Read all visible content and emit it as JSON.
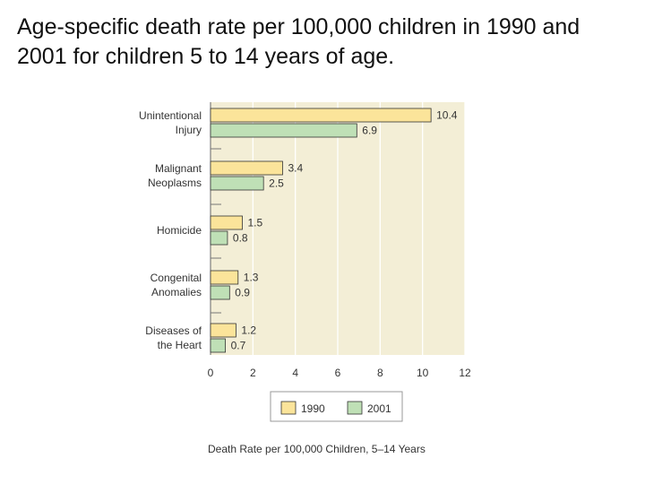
{
  "slide": {
    "title": "Age-specific death rate per 100,000 children in 1990 and 2001 for children 5 to 14 years of age."
  },
  "chart_data": {
    "type": "bar",
    "orientation": "horizontal",
    "categories": [
      [
        "Unintentional",
        "Injury"
      ],
      [
        "Malignant",
        "Neoplasms"
      ],
      [
        "Homicide"
      ],
      [
        "Congenital",
        "Anomalies"
      ],
      [
        "Diseases of",
        "the Heart"
      ]
    ],
    "series": [
      {
        "name": "1990",
        "values": [
          10.4,
          3.4,
          1.5,
          1.3,
          1.2
        ],
        "labels": [
          "10.4",
          "3.4",
          "1.5",
          "1.3",
          "1.2"
        ],
        "color": "#fbe49a"
      },
      {
        "name": "2001",
        "values": [
          6.9,
          2.5,
          0.8,
          0.9,
          0.7
        ],
        "labels": [
          "6.9",
          "2.5",
          "0.8",
          "0.9",
          "0.7"
        ],
        "color": "#bfe0b6"
      }
    ],
    "xlim": [
      0,
      12
    ],
    "xticks": [
      0,
      2,
      4,
      6,
      8,
      10,
      12
    ],
    "xlabel": "Death Rate per 100,000 Children, 5–14 Years",
    "ylabel": "",
    "grid": true,
    "legend_position": "bottom-center",
    "plot_background": "#f3eed6",
    "gridline_color": "#ffffff",
    "bar_border_color": "#333333"
  }
}
